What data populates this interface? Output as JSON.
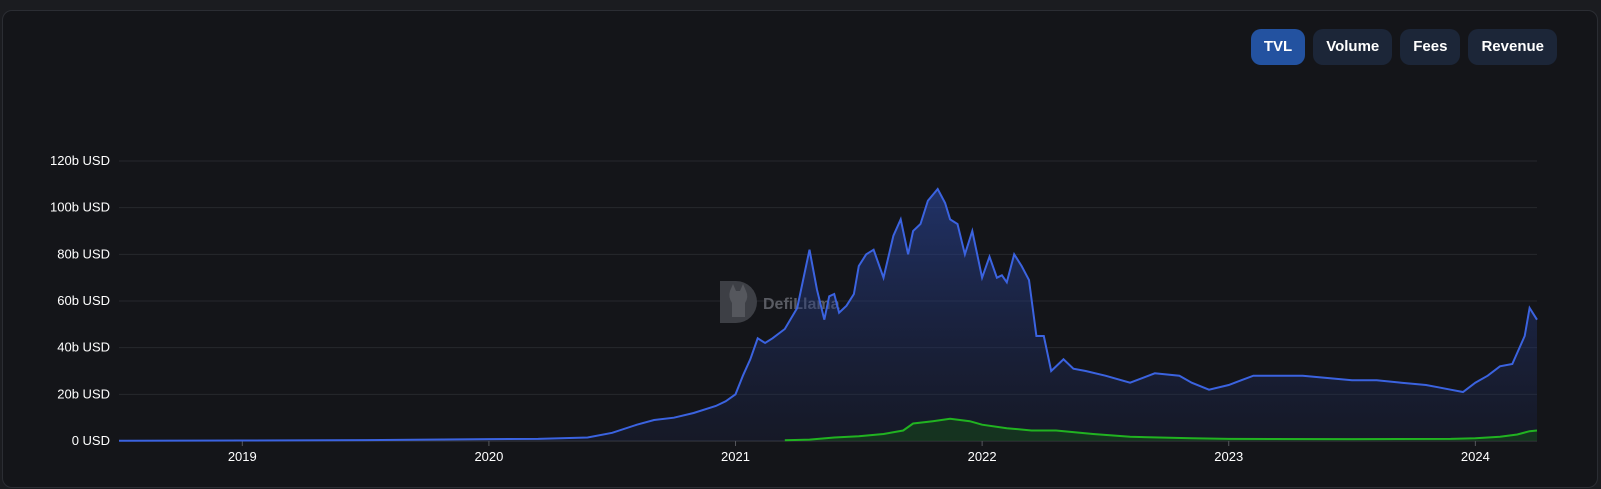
{
  "tabs": [
    {
      "label": "TVL",
      "active": true
    },
    {
      "label": "Volume",
      "active": false
    },
    {
      "label": "Fees",
      "active": false
    },
    {
      "label": "Revenue",
      "active": false
    }
  ],
  "watermark": {
    "text": "DefiLlama"
  },
  "colors": {
    "tvl_line": "#3b63e0",
    "secondary_line": "#21b321",
    "grid": "#26282d",
    "active_tab": "#2352a0",
    "tab": "#1c2638"
  },
  "chart_data": {
    "type": "area",
    "y_axis_labels": [
      "0 USD",
      "20b USD",
      "40b USD",
      "60b USD",
      "80b USD",
      "100b USD",
      "120b USD"
    ],
    "x_axis_labels": [
      "2019",
      "2020",
      "2021",
      "2022",
      "2023",
      "2024"
    ],
    "ylim": [
      0,
      120
    ],
    "xlim": [
      2018.5,
      2024.25
    ],
    "grid": true,
    "series": [
      {
        "x": [
          2018.5,
          2019.0,
          2019.5,
          2020.0,
          2020.2,
          2020.4,
          2020.5,
          2020.6,
          2020.67,
          2020.75,
          2020.83,
          2020.92,
          2020.96,
          2021.0,
          2021.03,
          2021.06,
          2021.09,
          2021.12,
          2021.15,
          2021.2,
          2021.25,
          2021.3,
          2021.33,
          2021.36,
          2021.38,
          2021.4,
          2021.42,
          2021.45,
          2021.48,
          2021.5,
          2021.53,
          2021.56,
          2021.6,
          2021.64,
          2021.67,
          2021.7,
          2021.72,
          2021.75,
          2021.78,
          2021.82,
          2021.85,
          2021.87,
          2021.9,
          2021.93,
          2021.96,
          2022.0,
          2022.03,
          2022.06,
          2022.08,
          2022.1,
          2022.13,
          2022.16,
          2022.19,
          2022.22,
          2022.25,
          2022.28,
          2022.33,
          2022.37,
          2022.42,
          2022.5,
          2022.6,
          2022.7,
          2022.8,
          2022.85,
          2022.92,
          2023.0,
          2023.05,
          2023.1,
          2023.2,
          2023.3,
          2023.4,
          2023.5,
          2023.6,
          2023.7,
          2023.8,
          2023.85,
          2023.9,
          2023.95,
          2024.0,
          2024.05,
          2024.1,
          2024.15,
          2024.2,
          2024.22,
          2024.25
        ],
        "values": [
          0.1,
          0.2,
          0.4,
          0.8,
          0.9,
          1.5,
          3.5,
          7,
          9,
          10,
          12,
          15,
          17,
          20,
          28,
          35,
          44,
          42,
          44,
          48,
          57,
          82,
          65,
          52,
          62,
          63,
          55,
          58,
          63,
          75,
          80,
          82,
          70,
          88,
          95,
          80,
          90,
          93,
          103,
          108,
          102,
          95,
          93,
          80,
          90,
          70,
          79,
          70,
          71,
          68,
          80,
          75,
          69,
          45,
          45,
          30,
          35,
          31,
          30,
          28,
          25,
          29,
          28,
          25,
          22,
          24,
          26,
          28,
          28,
          28,
          27,
          26,
          26,
          25,
          24,
          23,
          22,
          21,
          25,
          28,
          32,
          33,
          45,
          57,
          52
        ]
      },
      {
        "x": [
          2021.2,
          2021.3,
          2021.4,
          2021.5,
          2021.6,
          2021.68,
          2021.72,
          2021.8,
          2021.87,
          2021.95,
          2022.0,
          2022.1,
          2022.2,
          2022.3,
          2022.45,
          2022.6,
          2022.85,
          2023.0,
          2023.5,
          2023.9,
          2024.0,
          2024.1,
          2024.17,
          2024.22,
          2024.25
        ],
        "values": [
          0.3,
          0.6,
          1.5,
          2.0,
          3.0,
          4.5,
          7.5,
          8.5,
          9.5,
          8.5,
          7.0,
          5.5,
          4.5,
          4.5,
          3.0,
          1.8,
          1.2,
          0.9,
          0.8,
          0.9,
          1.2,
          1.8,
          2.8,
          4.2,
          4.5
        ]
      }
    ]
  }
}
